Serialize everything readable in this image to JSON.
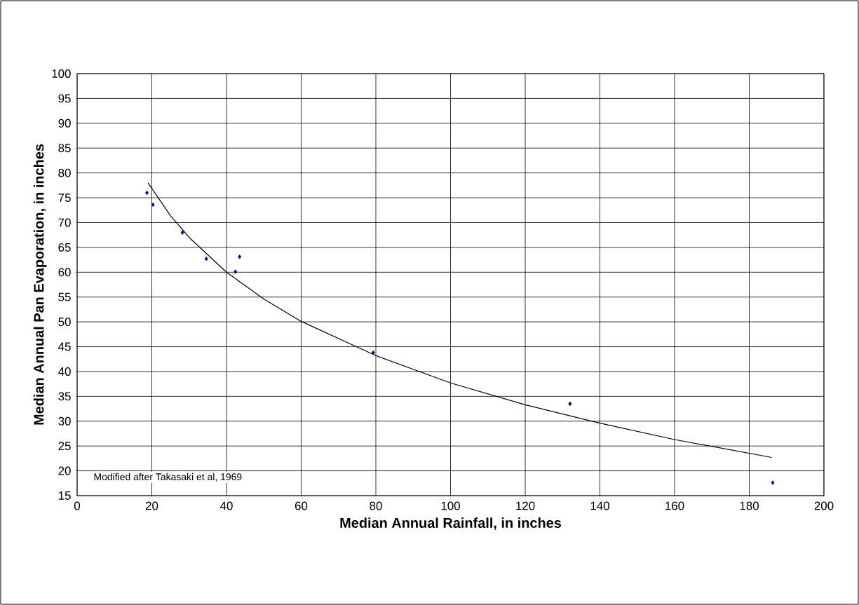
{
  "chart_data": {
    "type": "scatter",
    "xlabel": "Median Annual Rainfall, in inches",
    "ylabel": "Median Annual Pan Evaporation, in inches",
    "annotations": [
      "Modified after Takasaki et al, 1969"
    ],
    "series": [
      {
        "color": "#000080",
        "marker": "diamond",
        "x": [
          18.7,
          20.3,
          28.2,
          34.6,
          42.4,
          43.5,
          79.3,
          132.0,
          186.3
        ],
        "values": [
          76.0,
          73.6,
          68.0,
          62.7,
          60.1,
          63.1,
          43.8,
          33.5,
          17.6
        ]
      },
      {
        "type": "line",
        "color": "#000000",
        "marker": "none",
        "line_style": "solid",
        "x": [
          19,
          25,
          30,
          40,
          50,
          60,
          80,
          100,
          120,
          140,
          160,
          186
        ],
        "values": [
          78.0,
          71.4,
          67.0,
          60.0,
          54.6,
          50.1,
          43.2,
          37.7,
          33.3,
          29.6,
          26.3,
          22.7
        ]
      }
    ],
    "xlim": [
      0,
      200
    ],
    "xticks": [
      0,
      20,
      40,
      60,
      80,
      100,
      120,
      140,
      160,
      180,
      200
    ],
    "ylim": [
      15,
      100
    ],
    "yticks": [
      15,
      20,
      25,
      30,
      35,
      40,
      45,
      50,
      55,
      60,
      65,
      70,
      75,
      80,
      85,
      90,
      95,
      100
    ],
    "grid": true
  }
}
